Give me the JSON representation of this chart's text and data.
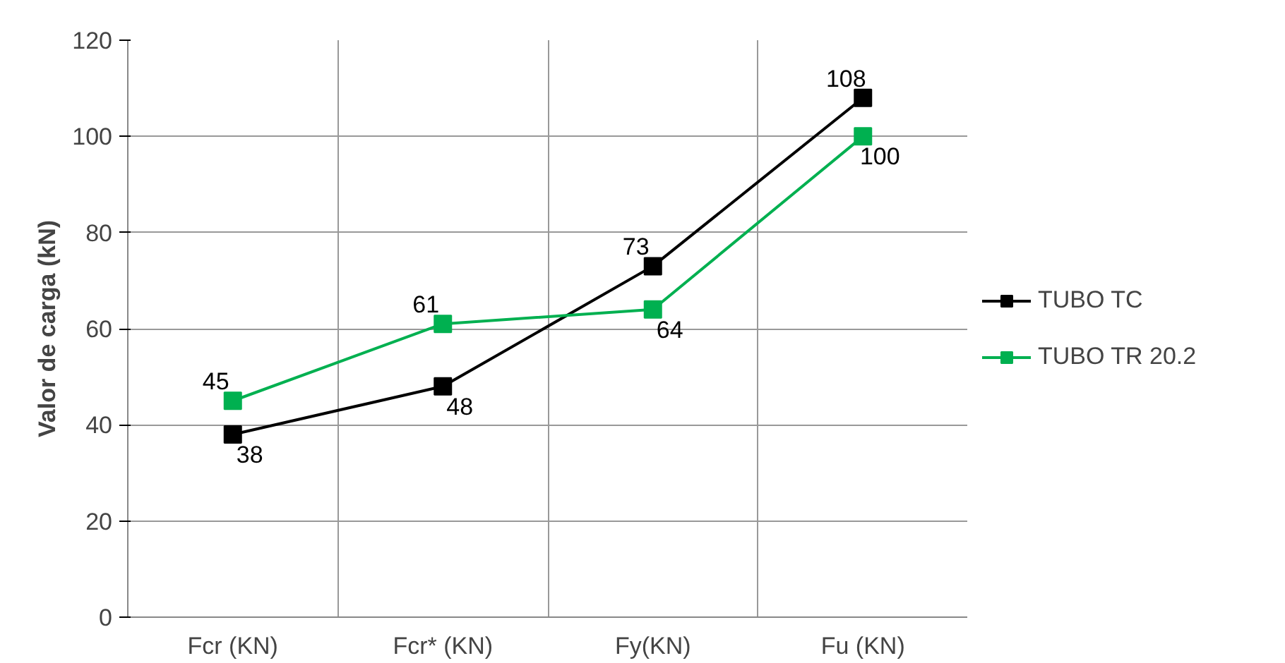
{
  "chart_data": {
    "type": "line",
    "ylabel": "Valor de carga (kN)",
    "categories": [
      "Fcr (KN)",
      "Fcr* (KN)",
      "Fy(KN)",
      "Fu (KN)"
    ],
    "series": [
      {
        "name": "TUBO TC",
        "color": "#000000",
        "values": [
          38,
          48,
          73,
          108
        ]
      },
      {
        "name": "TUBO TR 20.2",
        "color": "#00b050",
        "values": [
          45,
          61,
          64,
          100
        ]
      }
    ],
    "ylim": [
      0,
      120
    ],
    "yticks": [
      0,
      20,
      40,
      60,
      80,
      100,
      120
    ],
    "grid": true,
    "legend": "right",
    "marker": "square",
    "data_labels": true
  }
}
